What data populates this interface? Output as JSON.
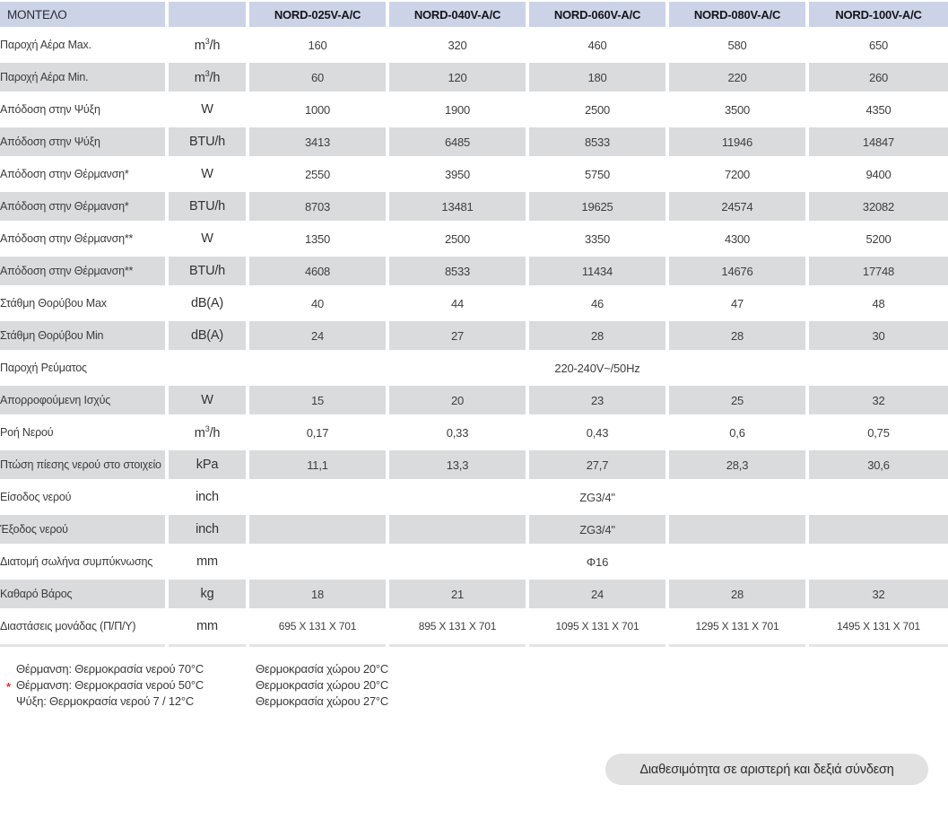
{
  "colors": {
    "header_bg": "#ccd3e7",
    "row_alt_bg": "#dadbdc",
    "footnote_marker": "#e2352b",
    "pill_bg": "#e1e1e2"
  },
  "table": {
    "header": {
      "model_label": "ΜΟΝΤΕΛΟ",
      "unit_header": "",
      "models": [
        "NORD-025V-A/C",
        "NORD-040V-A/C",
        "NORD-060V-A/C",
        "NORD-080V-A/C",
        "NORD-100V-A/C"
      ]
    },
    "rows": [
      {
        "label": "Παροχή Αέρα Max.",
        "unit": "m³/h",
        "values": [
          "160",
          "320",
          "460",
          "580",
          "650"
        ]
      },
      {
        "label": "Παροχή Αέρα Min.",
        "unit": "m³/h",
        "values": [
          "60",
          "120",
          "180",
          "220",
          "260"
        ]
      },
      {
        "label": "Απόδοση στην Ψύξη",
        "unit": "W",
        "values": [
          "1000",
          "1900",
          "2500",
          "3500",
          "4350"
        ]
      },
      {
        "label": "Απόδοση στην Ψύξη",
        "unit": "BTU/h",
        "values": [
          "3413",
          "6485",
          "8533",
          "11946",
          "14847"
        ]
      },
      {
        "label": "Απόδοση στην Θέρμανση*",
        "unit": "W",
        "values": [
          "2550",
          "3950",
          "5750",
          "7200",
          "9400"
        ]
      },
      {
        "label": "Απόδοση στην Θέρμανση*",
        "unit": "BTU/h",
        "values": [
          "8703",
          "13481",
          "19625",
          "24574",
          "32082"
        ]
      },
      {
        "label": "Απόδοση στην Θέρμανση**",
        "unit": "W",
        "values": [
          "1350",
          "2500",
          "3350",
          "4300",
          "5200"
        ]
      },
      {
        "label": "Απόδοση στην Θέρμανση**",
        "unit": "BTU/h",
        "values": [
          "4608",
          "8533",
          "11434",
          "14676",
          "17748"
        ]
      },
      {
        "label": "Στάθμη Θορύβου Max",
        "unit": "dB(A)",
        "values": [
          "40",
          "44",
          "46",
          "47",
          "48"
        ]
      },
      {
        "label": "Στάθμη Θορύβου Min",
        "unit": "dB(A)",
        "values": [
          "24",
          "27",
          "28",
          "28",
          "30"
        ]
      },
      {
        "label": "Παροχή Ρεύματος",
        "unit": "",
        "merged_value": "220-240V~/50Hz"
      },
      {
        "label": "Απορροφούμενη Ισχύς",
        "unit": "W",
        "values": [
          "15",
          "20",
          "23",
          "25",
          "32"
        ]
      },
      {
        "label": "Ροή Νερού",
        "unit": "m³/h",
        "values": [
          "0,17",
          "0,33",
          "0,43",
          "0,6",
          "0,75"
        ]
      },
      {
        "label": "Πτώση πίεσης νερού στο στοιχείο",
        "unit": "kPa",
        "values": [
          "11,1",
          "13,3",
          "27,7",
          "28,3",
          "30,6"
        ]
      },
      {
        "label": "Είσοδος νερού",
        "unit": "inch",
        "merged_value": "ZG3/4\""
      },
      {
        "label": "Έξοδος νερού",
        "unit": "inch",
        "merged_value": "ZG3/4\""
      },
      {
        "label": "Διατομή σωλήνα συμπύκνωσης",
        "unit": "mm",
        "merged_value": "Φ16"
      },
      {
        "label": "Καθαρό Βάρος",
        "unit": "kg",
        "values": [
          "18",
          "21",
          "24",
          "28",
          "32"
        ]
      },
      {
        "label": "Διαστάσεις μονάδας (Π/Π/Υ)",
        "unit": "mm",
        "values": [
          "695 X 131 X 701",
          "895 X 131 X 701",
          "1095 X 131 X 701",
          "1295 X 131 X 701",
          "1495 X 131 X 701"
        ]
      }
    ]
  },
  "footnotes": {
    "marker": "*",
    "lines": [
      {
        "left": "Θέρμανση: Θερμοκρασία νερού 70°C",
        "right": "Θερμοκρασία χώρου 20°C",
        "marked": false
      },
      {
        "left": "Θέρμανση: Θερμοκρασία νερού 50°C",
        "right": "Θερμοκρασία χώρου 20°C",
        "marked": true
      },
      {
        "left": "Ψύξη: Θερμοκρασία νερού 7 / 12°C",
        "right": "Θερμοκρασία χώρου 27°C",
        "marked": false
      }
    ]
  },
  "pill": {
    "label": "Διαθεσιμότητα σε αριστερή και δεξιά σύνδεση"
  }
}
